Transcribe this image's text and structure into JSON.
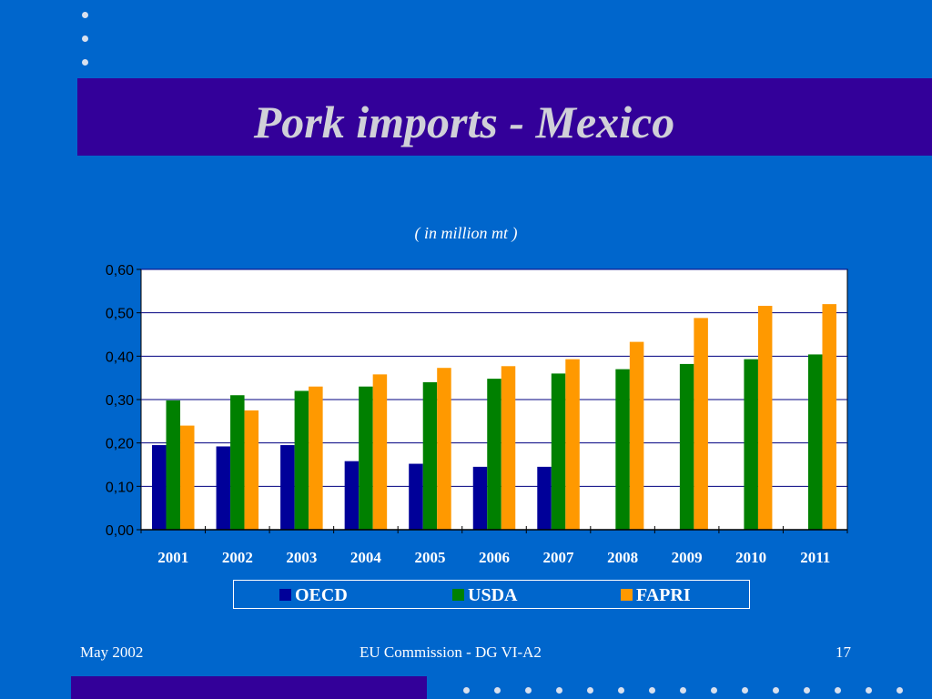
{
  "slide": {
    "title": "Pork imports - Mexico",
    "unit_note": "( in million mt )",
    "footer": {
      "left": "May 2002",
      "center": "EU Commission - DG VI-A2",
      "page_number": "17"
    }
  },
  "colors": {
    "background": "#0066cc",
    "band": "#330099",
    "plot_area": "#ffffff"
  },
  "chart_data": {
    "type": "bar",
    "categories": [
      "2001",
      "2002",
      "2003",
      "2004",
      "2005",
      "2006",
      "2007",
      "2008",
      "2009",
      "2010",
      "2011"
    ],
    "y_tick_labels": [
      "0,00",
      "0,10",
      "0,20",
      "0,30",
      "0,40",
      "0,50",
      "0,60"
    ],
    "ylim": [
      0,
      0.6
    ],
    "grid": true,
    "legend_position": "bottom",
    "series": [
      {
        "name": "OECD",
        "color": "#000099",
        "values": [
          0.195,
          0.192,
          0.195,
          0.158,
          0.152,
          0.145,
          0.145,
          null,
          null,
          null,
          null
        ]
      },
      {
        "name": "USDA",
        "color": "#008000",
        "values": [
          0.298,
          0.31,
          0.32,
          0.33,
          0.34,
          0.348,
          0.36,
          0.37,
          0.382,
          0.393,
          0.404
        ]
      },
      {
        "name": "FAPRI",
        "color": "#ff9900",
        "values": [
          0.24,
          0.275,
          0.33,
          0.358,
          0.373,
          0.377,
          0.393,
          0.433,
          0.488,
          0.516,
          0.52
        ]
      }
    ]
  }
}
